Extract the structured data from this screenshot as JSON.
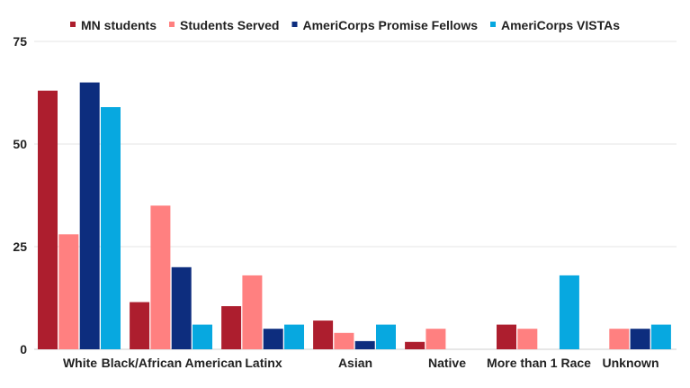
{
  "chart_data": {
    "type": "bar",
    "categories": [
      "White",
      "Black/African American",
      "Latinx",
      "Asian",
      "Native",
      "More than 1 Race",
      "Unknown"
    ],
    "series": [
      {
        "name": "MN students",
        "color": "#ad1e2e",
        "values": [
          63,
          11.5,
          10.5,
          7,
          1.8,
          6,
          0
        ]
      },
      {
        "name": "Students Served",
        "color": "#ff8080",
        "values": [
          28,
          35,
          18,
          4,
          5,
          5,
          5
        ]
      },
      {
        "name": "AmeriCorps Promise Fellows",
        "color": "#0d2d7e",
        "values": [
          65,
          20,
          5,
          2,
          0,
          0,
          5
        ]
      },
      {
        "name": "AmeriCorps VISTAs",
        "color": "#07a8e0",
        "values": [
          59,
          6,
          6,
          6,
          0,
          18,
          6
        ]
      }
    ],
    "yticks": [
      0,
      25,
      50,
      75
    ],
    "ylim": [
      0,
      75
    ],
    "grid": true,
    "legend": "top-center"
  }
}
